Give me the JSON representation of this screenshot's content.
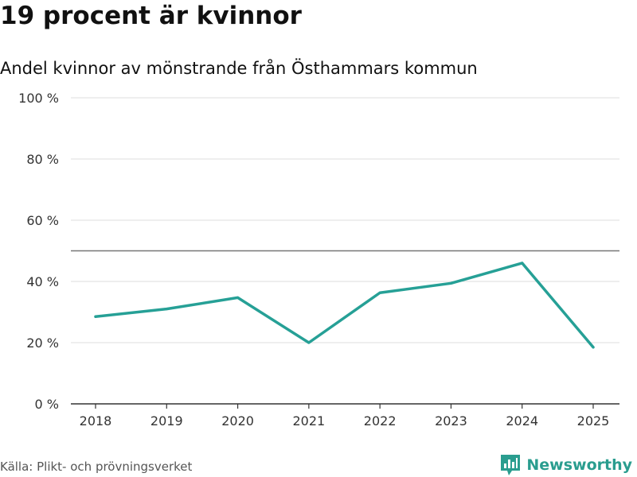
{
  "header": {
    "title": "19 procent är kvinnor",
    "subtitle": "Andel kvinnor av mönstrande från Östhammars kommun"
  },
  "footer": {
    "source": "Källa: Plikt- och prövningsverket",
    "brand": "Newsworthy",
    "brand_icon": "bar-chart-logo-icon"
  },
  "colors": {
    "line": "#26a096",
    "grid": "#dddddd",
    "reference": "#777777",
    "axis": "#333333",
    "brand": "#2a9d8f"
  },
  "chart_data": {
    "type": "line",
    "title": "19 procent är kvinnor",
    "subtitle": "Andel kvinnor av mönstrande från Östhammars kommun",
    "xlabel": "",
    "ylabel": "",
    "categories": [
      "2018",
      "2019",
      "2020",
      "2021",
      "2022",
      "2023",
      "2024",
      "2025"
    ],
    "series": [
      {
        "name": "Andel kvinnor",
        "values": [
          28.5,
          31,
          34.7,
          20,
          36.3,
          39.4,
          46,
          18.5
        ]
      }
    ],
    "ylim": [
      0,
      100
    ],
    "yticks": [
      0,
      20,
      40,
      60,
      80,
      100
    ],
    "ytick_labels": [
      "0 %",
      "20 %",
      "40 %",
      "60 %",
      "80 %",
      "100 %"
    ],
    "reference_line": 50,
    "grid": true,
    "legend": "none"
  }
}
